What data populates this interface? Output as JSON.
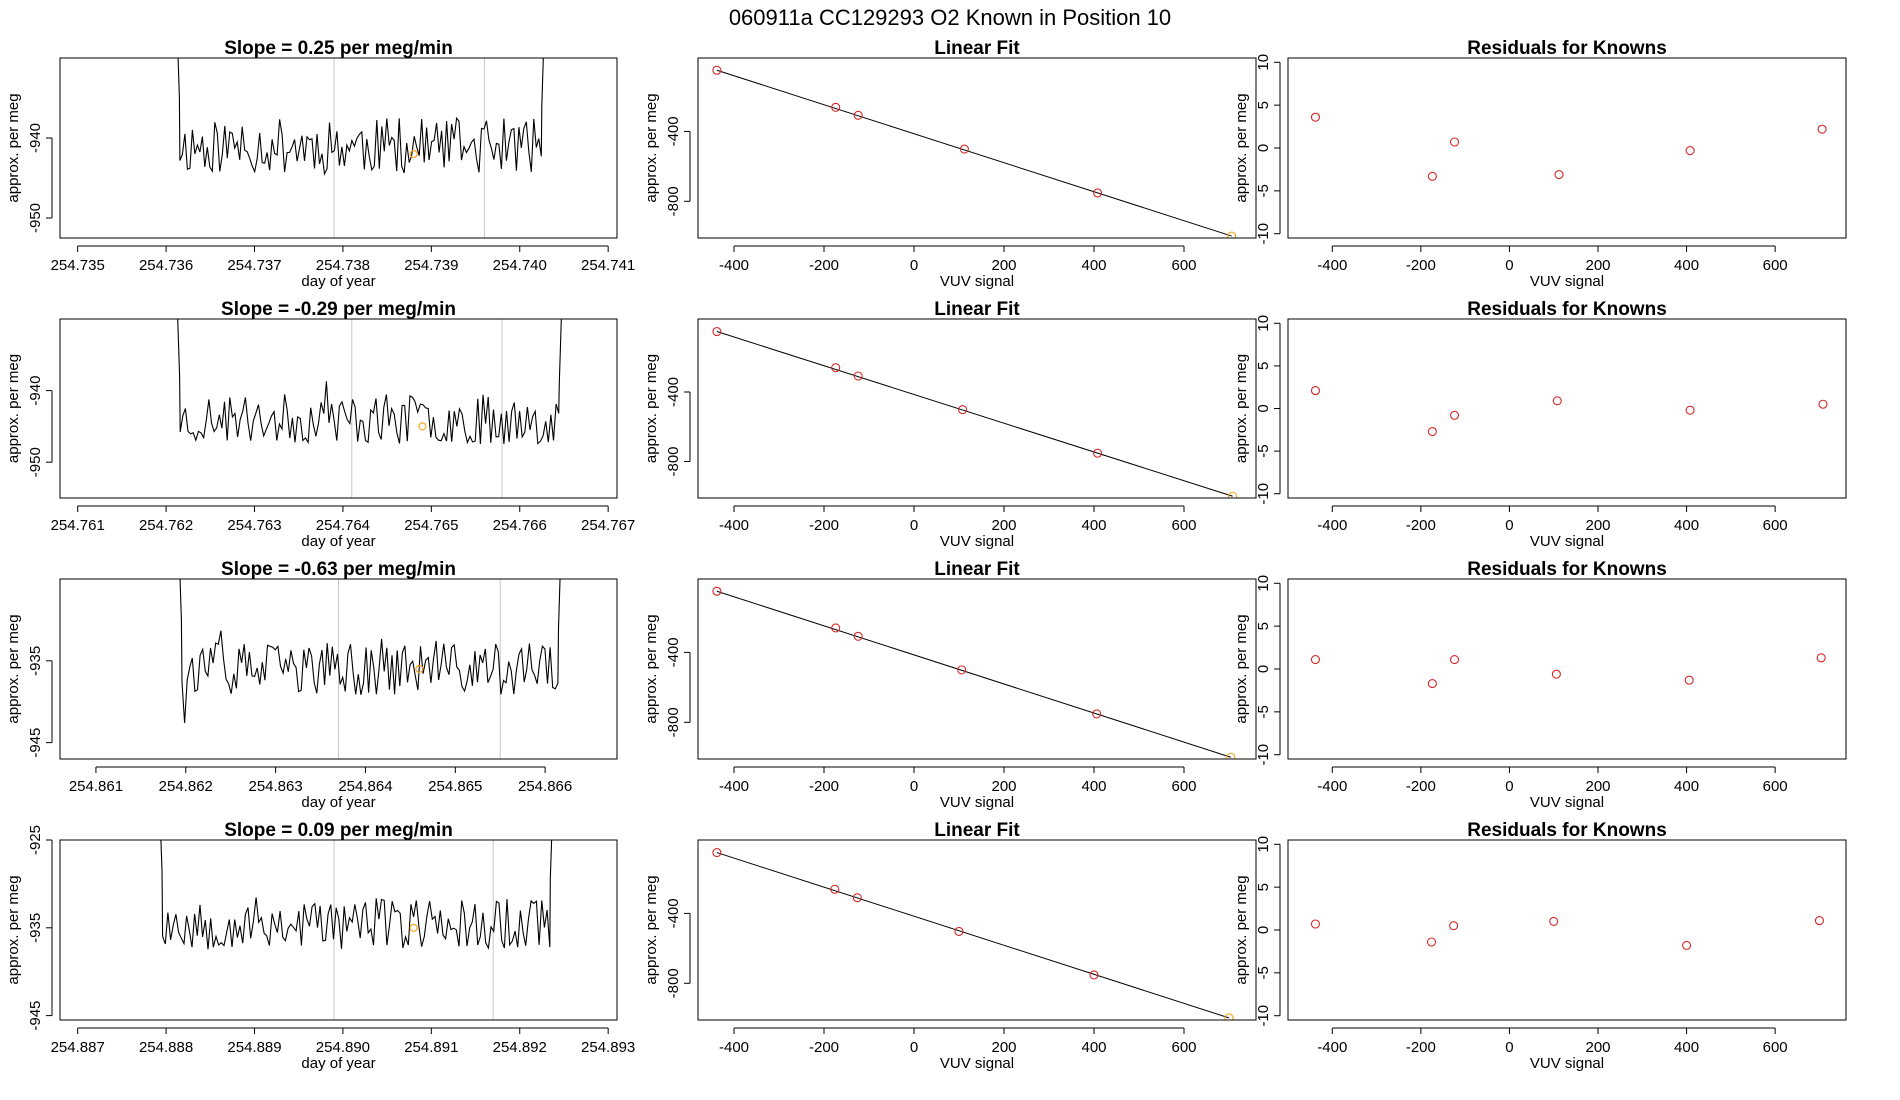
{
  "suptitle": "060911a      CC129293    O2 Known in Position  10",
  "colors": {
    "line": "#000000",
    "known_point": "#d62728",
    "highlight_point": "#f5a623",
    "vline": "#c8c8c8",
    "fit_line": "#000000"
  },
  "chart_data": [
    {
      "type": "line",
      "row": 0,
      "col": 0,
      "title": "Slope =  0.25  per meg/min",
      "xlabel": "day of year",
      "ylabel": "approx. per meg",
      "xlim": [
        254.7348,
        254.7411
      ],
      "ylim": [
        -952.5,
        -930
      ],
      "xticks": [
        254.735,
        254.736,
        254.737,
        254.738,
        254.739,
        254.74,
        254.741
      ],
      "xtick_labels": [
        "254.735",
        "254.736",
        "254.737",
        "254.738",
        "254.739",
        "254.740",
        "254.741"
      ],
      "yticks": [
        -940,
        -950
      ],
      "ytick_labels": [
        "-940",
        "-950"
      ],
      "series": {
        "x_start": 254.7361,
        "x_end": 254.7403,
        "baseline": -941,
        "noise": 3.5,
        "seed": 11
      },
      "vlines": [
        254.7379,
        254.7396
      ],
      "marker": {
        "x": 254.7388,
        "y": -942
      }
    },
    {
      "type": "scatter",
      "row": 0,
      "col": 1,
      "title": "Linear Fit",
      "xlabel": "VUV signal",
      "ylabel": "approx. per meg",
      "xlim": [
        -480,
        760
      ],
      "ylim": [
        -1010,
        20
      ],
      "xticks": [
        -400,
        -200,
        0,
        200,
        400,
        600
      ],
      "xtick_labels": [
        "-400",
        "-200",
        "0",
        "200",
        "400",
        "600"
      ],
      "yticks": [
        -400,
        -800
      ],
      "ytick_labels": [
        "-400",
        "-800"
      ],
      "x": [
        -438,
        -174,
        -124,
        112,
        408,
        706
      ],
      "y": [
        -50,
        -262,
        -308,
        -501,
        -752,
        -999
      ],
      "fit": {
        "x": [
          -438,
          706
        ],
        "y": [
          -50,
          -999
        ]
      }
    },
    {
      "type": "scatter",
      "row": 0,
      "col": 2,
      "title": "Residuals for Knowns",
      "xlabel": "VUV signal",
      "ylabel": "approx. per meg",
      "xlim": [
        -500,
        760
      ],
      "ylim": [
        -10.5,
        10.5
      ],
      "xticks": [
        -400,
        -200,
        0,
        200,
        400,
        600
      ],
      "xtick_labels": [
        "-400",
        "-200",
        "0",
        "200",
        "400",
        "600"
      ],
      "yticks": [
        10,
        5,
        0,
        -5,
        -10
      ],
      "ytick_labels": [
        "10",
        "5",
        "0",
        "-5",
        "-10"
      ],
      "x": [
        -438,
        -174,
        -124,
        112,
        408,
        706
      ],
      "y": [
        3.6,
        -3.3,
        0.7,
        -3.1,
        -0.3,
        2.2
      ]
    },
    {
      "type": "line",
      "row": 1,
      "col": 0,
      "title": "Slope =  -0.29  per meg/min",
      "xlabel": "day of year",
      "ylabel": "approx. per meg",
      "xlim": [
        254.7608,
        254.7671
      ],
      "ylim": [
        -955,
        -930
      ],
      "xticks": [
        254.761,
        254.762,
        254.763,
        254.764,
        254.765,
        254.766,
        254.767
      ],
      "xtick_labels": [
        "254.761",
        "254.762",
        "254.763",
        "254.764",
        "254.765",
        "254.766",
        "254.767"
      ],
      "yticks": [
        -940,
        -950
      ],
      "ytick_labels": [
        "-940",
        "-950"
      ],
      "series": {
        "x_start": 254.7621,
        "x_end": 254.7665,
        "baseline": -944,
        "noise": 3.5,
        "seed": 23
      },
      "vlines": [
        254.7641,
        254.7658
      ],
      "marker": {
        "x": 254.7649,
        "y": -945
      }
    },
    {
      "type": "scatter",
      "row": 1,
      "col": 1,
      "title": "Linear Fit",
      "xlabel": "VUV signal",
      "ylabel": "approx. per meg",
      "xlim": [
        -480,
        760
      ],
      "ylim": [
        -1010,
        20
      ],
      "xticks": [
        -400,
        -200,
        0,
        200,
        400,
        600
      ],
      "xtick_labels": [
        "-400",
        "-200",
        "0",
        "200",
        "400",
        "600"
      ],
      "yticks": [
        -400,
        -800
      ],
      "ytick_labels": [
        "-400",
        "-800"
      ],
      "x": [
        -438,
        -174,
        -124,
        108,
        408,
        708
      ],
      "y": [
        -52,
        -260,
        -308,
        -502,
        -752,
        -1000
      ],
      "fit": {
        "x": [
          -438,
          708
        ],
        "y": [
          -52,
          -1000
        ]
      }
    },
    {
      "type": "scatter",
      "row": 1,
      "col": 2,
      "title": "Residuals for Knowns",
      "xlabel": "VUV signal",
      "ylabel": "approx. per meg",
      "xlim": [
        -500,
        760
      ],
      "ylim": [
        -10.5,
        10.5
      ],
      "xticks": [
        -400,
        -200,
        0,
        200,
        400,
        600
      ],
      "xtick_labels": [
        "-400",
        "-200",
        "0",
        "200",
        "400",
        "600"
      ],
      "yticks": [
        10,
        5,
        0,
        -5,
        -10
      ],
      "ytick_labels": [
        "10",
        "5",
        "0",
        "-5",
        "-10"
      ],
      "x": [
        -438,
        -174,
        -124,
        108,
        408,
        708
      ],
      "y": [
        2.1,
        -2.7,
        -0.8,
        0.9,
        -0.2,
        0.5
      ]
    },
    {
      "type": "line",
      "row": 2,
      "col": 0,
      "title": "Slope =  -0.63  per meg/min",
      "xlabel": "day of year",
      "ylabel": "approx. per meg",
      "xlim": [
        254.8606,
        254.8668
      ],
      "ylim": [
        -947,
        -925
      ],
      "xticks": [
        254.861,
        254.862,
        254.863,
        254.864,
        254.865,
        254.866
      ],
      "xtick_labels": [
        "254.861",
        "254.862",
        "254.863",
        "254.864",
        "254.865",
        "254.866"
      ],
      "yticks": [
        -935,
        -945
      ],
      "ytick_labels": [
        "-935",
        "-945"
      ],
      "series": {
        "x_start": 254.8619,
        "x_end": 254.8662,
        "baseline": -936,
        "noise": 3.2,
        "seed": 37
      },
      "vlines": [
        254.8637,
        254.8655
      ],
      "marker": {
        "x": 254.8646,
        "y": -936
      }
    },
    {
      "type": "scatter",
      "row": 2,
      "col": 1,
      "title": "Linear Fit",
      "xlabel": "VUV signal",
      "ylabel": "approx. per meg",
      "xlim": [
        -480,
        760
      ],
      "ylim": [
        -1010,
        20
      ],
      "xticks": [
        -400,
        -200,
        0,
        200,
        400,
        600
      ],
      "xtick_labels": [
        "-400",
        "-200",
        "0",
        "200",
        "400",
        "600"
      ],
      "yticks": [
        -400,
        -800
      ],
      "ytick_labels": [
        "-400",
        "-800"
      ],
      "x": [
        -438,
        -174,
        -124,
        106,
        406,
        704
      ],
      "y": [
        -50,
        -260,
        -308,
        -500,
        -752,
        -1000
      ],
      "fit": {
        "x": [
          -438,
          704
        ],
        "y": [
          -50,
          -1000
        ]
      }
    },
    {
      "type": "scatter",
      "row": 2,
      "col": 2,
      "title": "Residuals for Knowns",
      "xlabel": "VUV signal",
      "ylabel": "approx. per meg",
      "xlim": [
        -500,
        760
      ],
      "ylim": [
        -10.5,
        10.5
      ],
      "xticks": [
        -400,
        -200,
        0,
        200,
        400,
        600
      ],
      "xtick_labels": [
        "-400",
        "-200",
        "0",
        "200",
        "400",
        "600"
      ],
      "yticks": [
        10,
        5,
        0,
        -5,
        -10
      ],
      "ytick_labels": [
        "10",
        "5",
        "0",
        "-5",
        "-10"
      ],
      "x": [
        -438,
        -174,
        -124,
        106,
        406,
        704
      ],
      "y": [
        1.1,
        -1.7,
        1.1,
        -0.6,
        -1.3,
        1.3
      ]
    },
    {
      "type": "line",
      "row": 3,
      "col": 0,
      "title": "Slope =  0.09  per meg/min",
      "xlabel": "day of year",
      "ylabel": "approx. per meg",
      "xlim": [
        254.8868,
        254.8931
      ],
      "ylim": [
        -945.5,
        -925
      ],
      "xticks": [
        254.887,
        254.888,
        254.889,
        254.89,
        254.891,
        254.892,
        254.893
      ],
      "xtick_labels": [
        "254.887",
        "254.888",
        "254.889",
        "254.890",
        "254.891",
        "254.892",
        "254.893"
      ],
      "yticks": [
        -925,
        -935,
        -945
      ],
      "ytick_labels": [
        "-925",
        "-935",
        "-945"
      ],
      "series": {
        "x_start": 254.8879,
        "x_end": 254.8924,
        "baseline": -934.5,
        "noise": 3.0,
        "seed": 53
      },
      "vlines": [
        254.8899,
        254.8917
      ],
      "marker": {
        "x": 254.8908,
        "y": -935
      }
    },
    {
      "type": "scatter",
      "row": 3,
      "col": 1,
      "title": "Linear Fit",
      "xlabel": "VUV signal",
      "ylabel": "approx. per meg",
      "xlim": [
        -480,
        760
      ],
      "ylim": [
        -1010,
        20
      ],
      "xticks": [
        -400,
        -200,
        0,
        200,
        400,
        600
      ],
      "xtick_labels": [
        "-400",
        "-200",
        "0",
        "200",
        "400",
        "600"
      ],
      "yticks": [
        -400,
        -800
      ],
      "ytick_labels": [
        "-400",
        "-800"
      ],
      "x": [
        -438,
        -176,
        -126,
        100,
        400,
        700
      ],
      "y": [
        -52,
        -262,
        -310,
        -503,
        -752,
        -998
      ],
      "fit": {
        "x": [
          -438,
          700
        ],
        "y": [
          -52,
          -998
        ]
      }
    },
    {
      "type": "scatter",
      "row": 3,
      "col": 2,
      "title": "Residuals for Knowns",
      "xlabel": "VUV signal",
      "ylabel": "approx. per meg",
      "xlim": [
        -500,
        760
      ],
      "ylim": [
        -10.5,
        10.5
      ],
      "xticks": [
        -400,
        -200,
        0,
        200,
        400,
        600
      ],
      "xtick_labels": [
        "-400",
        "-200",
        "0",
        "200",
        "400",
        "600"
      ],
      "yticks": [
        10,
        5,
        0,
        -5,
        -10
      ],
      "ytick_labels": [
        "10",
        "5",
        "0",
        "-5",
        "-10"
      ],
      "x": [
        -438,
        -176,
        -126,
        100,
        400,
        700
      ],
      "y": [
        0.7,
        -1.4,
        0.5,
        1.0,
        -1.8,
        1.1
      ]
    }
  ]
}
